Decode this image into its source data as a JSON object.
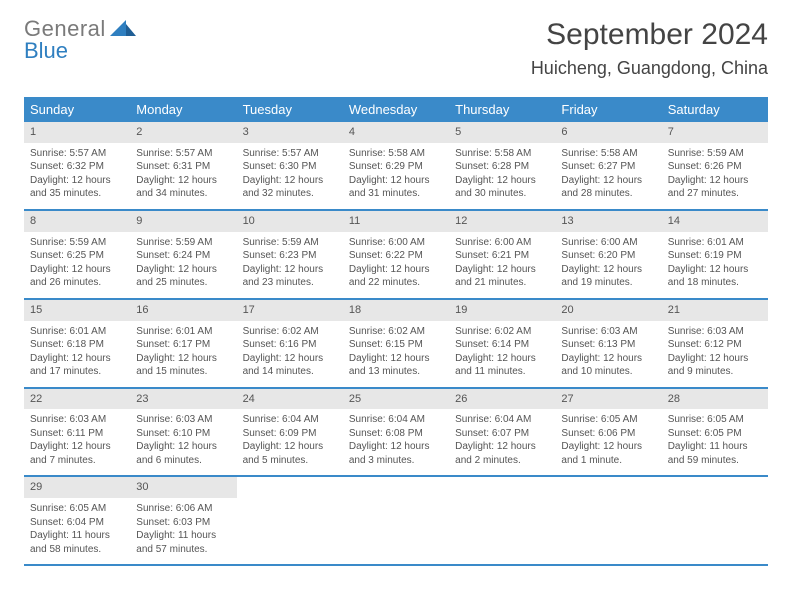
{
  "brand": {
    "word1": "General",
    "word2": "Blue"
  },
  "title": "September 2024",
  "location": "Huicheng, Guangdong, China",
  "colors": {
    "header_bg": "#3a8ac9",
    "header_text": "#ffffff",
    "daynum_bg": "#e7e7e7",
    "text": "#555555",
    "rule": "#3a8ac9",
    "brand_blue": "#2f7fc0"
  },
  "day_headers": [
    "Sunday",
    "Monday",
    "Tuesday",
    "Wednesday",
    "Thursday",
    "Friday",
    "Saturday"
  ],
  "weeks": [
    [
      {
        "n": "1",
        "sunrise": "Sunrise: 5:57 AM",
        "sunset": "Sunset: 6:32 PM",
        "dl1": "Daylight: 12 hours",
        "dl2": "and 35 minutes."
      },
      {
        "n": "2",
        "sunrise": "Sunrise: 5:57 AM",
        "sunset": "Sunset: 6:31 PM",
        "dl1": "Daylight: 12 hours",
        "dl2": "and 34 minutes."
      },
      {
        "n": "3",
        "sunrise": "Sunrise: 5:57 AM",
        "sunset": "Sunset: 6:30 PM",
        "dl1": "Daylight: 12 hours",
        "dl2": "and 32 minutes."
      },
      {
        "n": "4",
        "sunrise": "Sunrise: 5:58 AM",
        "sunset": "Sunset: 6:29 PM",
        "dl1": "Daylight: 12 hours",
        "dl2": "and 31 minutes."
      },
      {
        "n": "5",
        "sunrise": "Sunrise: 5:58 AM",
        "sunset": "Sunset: 6:28 PM",
        "dl1": "Daylight: 12 hours",
        "dl2": "and 30 minutes."
      },
      {
        "n": "6",
        "sunrise": "Sunrise: 5:58 AM",
        "sunset": "Sunset: 6:27 PM",
        "dl1": "Daylight: 12 hours",
        "dl2": "and 28 minutes."
      },
      {
        "n": "7",
        "sunrise": "Sunrise: 5:59 AM",
        "sunset": "Sunset: 6:26 PM",
        "dl1": "Daylight: 12 hours",
        "dl2": "and 27 minutes."
      }
    ],
    [
      {
        "n": "8",
        "sunrise": "Sunrise: 5:59 AM",
        "sunset": "Sunset: 6:25 PM",
        "dl1": "Daylight: 12 hours",
        "dl2": "and 26 minutes."
      },
      {
        "n": "9",
        "sunrise": "Sunrise: 5:59 AM",
        "sunset": "Sunset: 6:24 PM",
        "dl1": "Daylight: 12 hours",
        "dl2": "and 25 minutes."
      },
      {
        "n": "10",
        "sunrise": "Sunrise: 5:59 AM",
        "sunset": "Sunset: 6:23 PM",
        "dl1": "Daylight: 12 hours",
        "dl2": "and 23 minutes."
      },
      {
        "n": "11",
        "sunrise": "Sunrise: 6:00 AM",
        "sunset": "Sunset: 6:22 PM",
        "dl1": "Daylight: 12 hours",
        "dl2": "and 22 minutes."
      },
      {
        "n": "12",
        "sunrise": "Sunrise: 6:00 AM",
        "sunset": "Sunset: 6:21 PM",
        "dl1": "Daylight: 12 hours",
        "dl2": "and 21 minutes."
      },
      {
        "n": "13",
        "sunrise": "Sunrise: 6:00 AM",
        "sunset": "Sunset: 6:20 PM",
        "dl1": "Daylight: 12 hours",
        "dl2": "and 19 minutes."
      },
      {
        "n": "14",
        "sunrise": "Sunrise: 6:01 AM",
        "sunset": "Sunset: 6:19 PM",
        "dl1": "Daylight: 12 hours",
        "dl2": "and 18 minutes."
      }
    ],
    [
      {
        "n": "15",
        "sunrise": "Sunrise: 6:01 AM",
        "sunset": "Sunset: 6:18 PM",
        "dl1": "Daylight: 12 hours",
        "dl2": "and 17 minutes."
      },
      {
        "n": "16",
        "sunrise": "Sunrise: 6:01 AM",
        "sunset": "Sunset: 6:17 PM",
        "dl1": "Daylight: 12 hours",
        "dl2": "and 15 minutes."
      },
      {
        "n": "17",
        "sunrise": "Sunrise: 6:02 AM",
        "sunset": "Sunset: 6:16 PM",
        "dl1": "Daylight: 12 hours",
        "dl2": "and 14 minutes."
      },
      {
        "n": "18",
        "sunrise": "Sunrise: 6:02 AM",
        "sunset": "Sunset: 6:15 PM",
        "dl1": "Daylight: 12 hours",
        "dl2": "and 13 minutes."
      },
      {
        "n": "19",
        "sunrise": "Sunrise: 6:02 AM",
        "sunset": "Sunset: 6:14 PM",
        "dl1": "Daylight: 12 hours",
        "dl2": "and 11 minutes."
      },
      {
        "n": "20",
        "sunrise": "Sunrise: 6:03 AM",
        "sunset": "Sunset: 6:13 PM",
        "dl1": "Daylight: 12 hours",
        "dl2": "and 10 minutes."
      },
      {
        "n": "21",
        "sunrise": "Sunrise: 6:03 AM",
        "sunset": "Sunset: 6:12 PM",
        "dl1": "Daylight: 12 hours",
        "dl2": "and 9 minutes."
      }
    ],
    [
      {
        "n": "22",
        "sunrise": "Sunrise: 6:03 AM",
        "sunset": "Sunset: 6:11 PM",
        "dl1": "Daylight: 12 hours",
        "dl2": "and 7 minutes."
      },
      {
        "n": "23",
        "sunrise": "Sunrise: 6:03 AM",
        "sunset": "Sunset: 6:10 PM",
        "dl1": "Daylight: 12 hours",
        "dl2": "and 6 minutes."
      },
      {
        "n": "24",
        "sunrise": "Sunrise: 6:04 AM",
        "sunset": "Sunset: 6:09 PM",
        "dl1": "Daylight: 12 hours",
        "dl2": "and 5 minutes."
      },
      {
        "n": "25",
        "sunrise": "Sunrise: 6:04 AM",
        "sunset": "Sunset: 6:08 PM",
        "dl1": "Daylight: 12 hours",
        "dl2": "and 3 minutes."
      },
      {
        "n": "26",
        "sunrise": "Sunrise: 6:04 AM",
        "sunset": "Sunset: 6:07 PM",
        "dl1": "Daylight: 12 hours",
        "dl2": "and 2 minutes."
      },
      {
        "n": "27",
        "sunrise": "Sunrise: 6:05 AM",
        "sunset": "Sunset: 6:06 PM",
        "dl1": "Daylight: 12 hours",
        "dl2": "and 1 minute."
      },
      {
        "n": "28",
        "sunrise": "Sunrise: 6:05 AM",
        "sunset": "Sunset: 6:05 PM",
        "dl1": "Daylight: 11 hours",
        "dl2": "and 59 minutes."
      }
    ],
    [
      {
        "n": "29",
        "sunrise": "Sunrise: 6:05 AM",
        "sunset": "Sunset: 6:04 PM",
        "dl1": "Daylight: 11 hours",
        "dl2": "and 58 minutes."
      },
      {
        "n": "30",
        "sunrise": "Sunrise: 6:06 AM",
        "sunset": "Sunset: 6:03 PM",
        "dl1": "Daylight: 11 hours",
        "dl2": "and 57 minutes."
      },
      null,
      null,
      null,
      null,
      null
    ]
  ]
}
